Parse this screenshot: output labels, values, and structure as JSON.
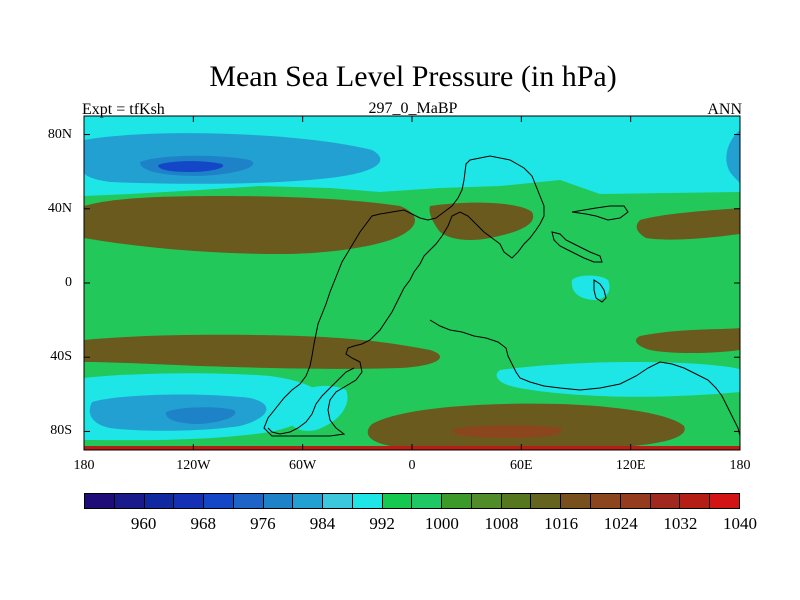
{
  "chart_data": {
    "type": "map",
    "title": "Mean Sea Level Pressure (in hPa)",
    "subtitle_left": "Expt = tfKsh",
    "subtitle_center": "297_0_MaBP",
    "subtitle_right": "ANN",
    "x_ticks": [
      {
        "lon": -180,
        "label": "180"
      },
      {
        "lon": -120,
        "label": "120W"
      },
      {
        "lon": -60,
        "label": "60W"
      },
      {
        "lon": 0,
        "label": "0"
      },
      {
        "lon": 60,
        "label": "60E"
      },
      {
        "lon": 120,
        "label": "120E"
      },
      {
        "lon": 180,
        "label": "180"
      }
    ],
    "y_ticks": [
      {
        "lat": 80,
        "label": "80N"
      },
      {
        "lat": 40,
        "label": "40N"
      },
      {
        "lat": 0,
        "label": "0"
      },
      {
        "lat": -40,
        "label": "40S"
      },
      {
        "lat": -80,
        "label": "80S"
      }
    ],
    "colorbar": {
      "colors": [
        "#1e0c78",
        "#1a1a8c",
        "#1028a0",
        "#1430b4",
        "#1446c8",
        "#1e64c8",
        "#1e82c8",
        "#23a0d2",
        "#3cc8dc",
        "#1ee6e6",
        "#14c850",
        "#1ec864",
        "#3c9b28",
        "#508c28",
        "#55781e",
        "#64641e",
        "#78501e",
        "#8c461e",
        "#963c1e",
        "#a0281e",
        "#b41e14",
        "#d21414"
      ],
      "labels": [
        {
          "boundary": 2,
          "label": "960"
        },
        {
          "boundary": 4,
          "label": "968"
        },
        {
          "boundary": 6,
          "label": "976"
        },
        {
          "boundary": 8,
          "label": "984"
        },
        {
          "boundary": 10,
          "label": "992"
        },
        {
          "boundary": 12,
          "label": "1000"
        },
        {
          "boundary": 14,
          "label": "1008"
        },
        {
          "boundary": 16,
          "label": "1016"
        },
        {
          "boundary": 18,
          "label": "1024"
        },
        {
          "boundary": 20,
          "label": "1032"
        },
        {
          "boundary": 22,
          "label": "1040"
        }
      ]
    },
    "fields": {
      "background": "#22c85a",
      "cyan": "#1ee6e6",
      "lightblue": "#23a0d2",
      "midblue": "#1e82c8",
      "darkblue": "#1446c8",
      "olive": "#55781e",
      "brown": "#6a5a1e",
      "rust": "#8c461e",
      "edge_red": "#b41e14"
    }
  }
}
